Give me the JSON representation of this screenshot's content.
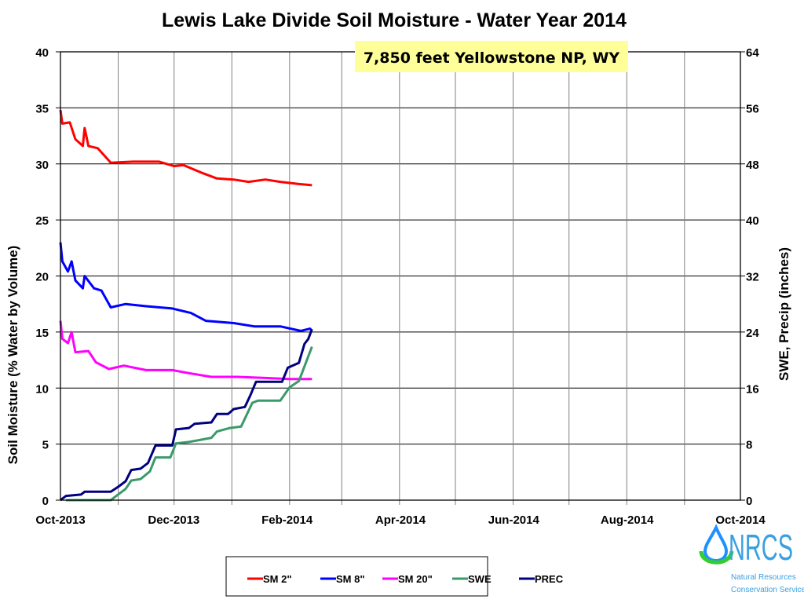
{
  "chart_data": {
    "type": "line",
    "title": "Lewis Lake Divide Soil Moisture - Water Year 2014",
    "subtitle": "7,850 feet Yellowstone NP, WY",
    "ylabel": "Soil Moisture (% Water by Volume)",
    "y2label": "SWE, Precip (inches)",
    "xlim": [
      "2013-10-01",
      "2014-10-01"
    ],
    "ylim": [
      0,
      40
    ],
    "y2lim": [
      0,
      64
    ],
    "x_ticks": [
      "Oct-2013",
      "Dec-2013",
      "Feb-2014",
      "Apr-2014",
      "Jun-2014",
      "Aug-2014",
      "Oct-2014"
    ],
    "y_ticks": [
      "0",
      "5",
      "10",
      "15",
      "20",
      "25",
      "30",
      "35",
      "40"
    ],
    "y2_ticks": [
      "0",
      "8",
      "16",
      "24",
      "32",
      "40",
      "48",
      "56",
      "64"
    ],
    "grid": true,
    "legend_position": "bottom",
    "series": [
      {
        "name": "SM 2\"",
        "axis": "left",
        "color": "#ff0000",
        "points": [
          [
            "2013-10-01",
            34.8
          ],
          [
            "2013-10-02",
            33.6
          ],
          [
            "2013-10-06",
            33.7
          ],
          [
            "2013-10-09",
            32.2
          ],
          [
            "2013-10-13",
            31.6
          ],
          [
            "2013-10-14",
            33.2
          ],
          [
            "2013-10-16",
            31.6
          ],
          [
            "2013-10-21",
            31.4
          ],
          [
            "2013-10-28",
            30.1
          ],
          [
            "2013-11-09",
            30.2
          ],
          [
            "2013-11-23",
            30.2
          ],
          [
            "2013-12-01",
            29.8
          ],
          [
            "2013-12-06",
            29.9
          ],
          [
            "2013-12-16",
            29.2
          ],
          [
            "2013-12-24",
            28.7
          ],
          [
            "2014-01-02",
            28.6
          ],
          [
            "2014-01-10",
            28.4
          ],
          [
            "2014-01-19",
            28.6
          ],
          [
            "2014-01-27",
            28.4
          ],
          [
            "2014-02-06",
            28.2
          ],
          [
            "2014-02-13",
            28.1
          ]
        ]
      },
      {
        "name": "SM 8\"",
        "axis": "left",
        "color": "#0000ff",
        "points": [
          [
            "2013-10-01",
            23.0
          ],
          [
            "2013-10-02",
            21.3
          ],
          [
            "2013-10-05",
            20.4
          ],
          [
            "2013-10-07",
            21.3
          ],
          [
            "2013-10-09",
            19.6
          ],
          [
            "2013-10-13",
            18.9
          ],
          [
            "2013-10-14",
            20.0
          ],
          [
            "2013-10-19",
            18.9
          ],
          [
            "2013-10-23",
            18.7
          ],
          [
            "2013-10-28",
            17.2
          ],
          [
            "2013-11-05",
            17.5
          ],
          [
            "2013-11-16",
            17.3
          ],
          [
            "2013-11-30",
            17.1
          ],
          [
            "2013-12-10",
            16.7
          ],
          [
            "2013-12-18",
            16.0
          ],
          [
            "2014-01-02",
            15.8
          ],
          [
            "2014-01-13",
            15.5
          ],
          [
            "2014-01-27",
            15.5
          ],
          [
            "2014-02-07",
            15.1
          ],
          [
            "2014-02-12",
            15.3
          ],
          [
            "2014-02-13",
            15.1
          ]
        ]
      },
      {
        "name": "SM 20\"",
        "axis": "left",
        "color": "#ff00ff",
        "points": [
          [
            "2013-10-01",
            16.0
          ],
          [
            "2013-10-02",
            14.4
          ],
          [
            "2013-10-05",
            14.0
          ],
          [
            "2013-10-07",
            15.0
          ],
          [
            "2013-10-09",
            13.2
          ],
          [
            "2013-10-16",
            13.3
          ],
          [
            "2013-10-20",
            12.3
          ],
          [
            "2013-10-27",
            11.7
          ],
          [
            "2013-11-04",
            12.0
          ],
          [
            "2013-11-16",
            11.6
          ],
          [
            "2013-11-30",
            11.6
          ],
          [
            "2013-12-10",
            11.3
          ],
          [
            "2013-12-21",
            11.0
          ],
          [
            "2014-01-04",
            11.0
          ],
          [
            "2014-01-19",
            10.9
          ],
          [
            "2014-02-01",
            10.8
          ],
          [
            "2014-02-13",
            10.8
          ]
        ]
      },
      {
        "name": "SWE",
        "axis": "right",
        "color": "#3a9a6a",
        "points": [
          [
            "2013-10-04",
            0
          ],
          [
            "2013-10-28",
            0
          ],
          [
            "2013-10-31",
            0.6
          ],
          [
            "2013-11-05",
            1.6
          ],
          [
            "2013-11-08",
            2.8
          ],
          [
            "2013-11-13",
            3.0
          ],
          [
            "2013-11-18",
            4.1
          ],
          [
            "2013-11-21",
            6.1
          ],
          [
            "2013-11-29",
            6.1
          ],
          [
            "2013-12-02",
            8.1
          ],
          [
            "2013-12-09",
            8.3
          ],
          [
            "2013-12-21",
            8.9
          ],
          [
            "2013-12-24",
            9.8
          ],
          [
            "2013-12-31",
            10.3
          ],
          [
            "2014-01-06",
            10.5
          ],
          [
            "2014-01-12",
            13.9
          ],
          [
            "2014-01-15",
            14.2
          ],
          [
            "2014-01-27",
            14.2
          ],
          [
            "2014-02-01",
            16.1
          ],
          [
            "2014-02-06",
            17.0
          ],
          [
            "2014-02-10",
            19.8
          ],
          [
            "2014-02-13",
            21.9
          ]
        ]
      },
      {
        "name": "PREC",
        "axis": "right",
        "color": "#000080",
        "points": [
          [
            "2013-10-01",
            0
          ],
          [
            "2013-10-04",
            0.6
          ],
          [
            "2013-10-12",
            0.8
          ],
          [
            "2013-10-14",
            1.2
          ],
          [
            "2013-10-28",
            1.2
          ],
          [
            "2013-11-01",
            1.9
          ],
          [
            "2013-11-05",
            2.7
          ],
          [
            "2013-11-08",
            4.3
          ],
          [
            "2013-11-13",
            4.5
          ],
          [
            "2013-11-17",
            5.3
          ],
          [
            "2013-11-21",
            7.8
          ],
          [
            "2013-11-30",
            7.8
          ],
          [
            "2013-12-02",
            10.1
          ],
          [
            "2013-12-09",
            10.3
          ],
          [
            "2013-12-12",
            10.9
          ],
          [
            "2013-12-21",
            11.1
          ],
          [
            "2013-12-24",
            12.3
          ],
          [
            "2013-12-30",
            12.3
          ],
          [
            "2014-01-02",
            13.0
          ],
          [
            "2014-01-08",
            13.3
          ],
          [
            "2014-01-11",
            15.0
          ],
          [
            "2014-01-14",
            16.9
          ],
          [
            "2014-01-28",
            16.9
          ],
          [
            "2014-01-31",
            18.9
          ],
          [
            "2014-02-06",
            19.6
          ],
          [
            "2014-02-09",
            22.3
          ],
          [
            "2014-02-11",
            23.0
          ],
          [
            "2014-02-13",
            24.4
          ]
        ]
      }
    ]
  },
  "logo": {
    "text": "NRCS",
    "line1": "Natural Resources",
    "line2": "Conservation Service"
  }
}
